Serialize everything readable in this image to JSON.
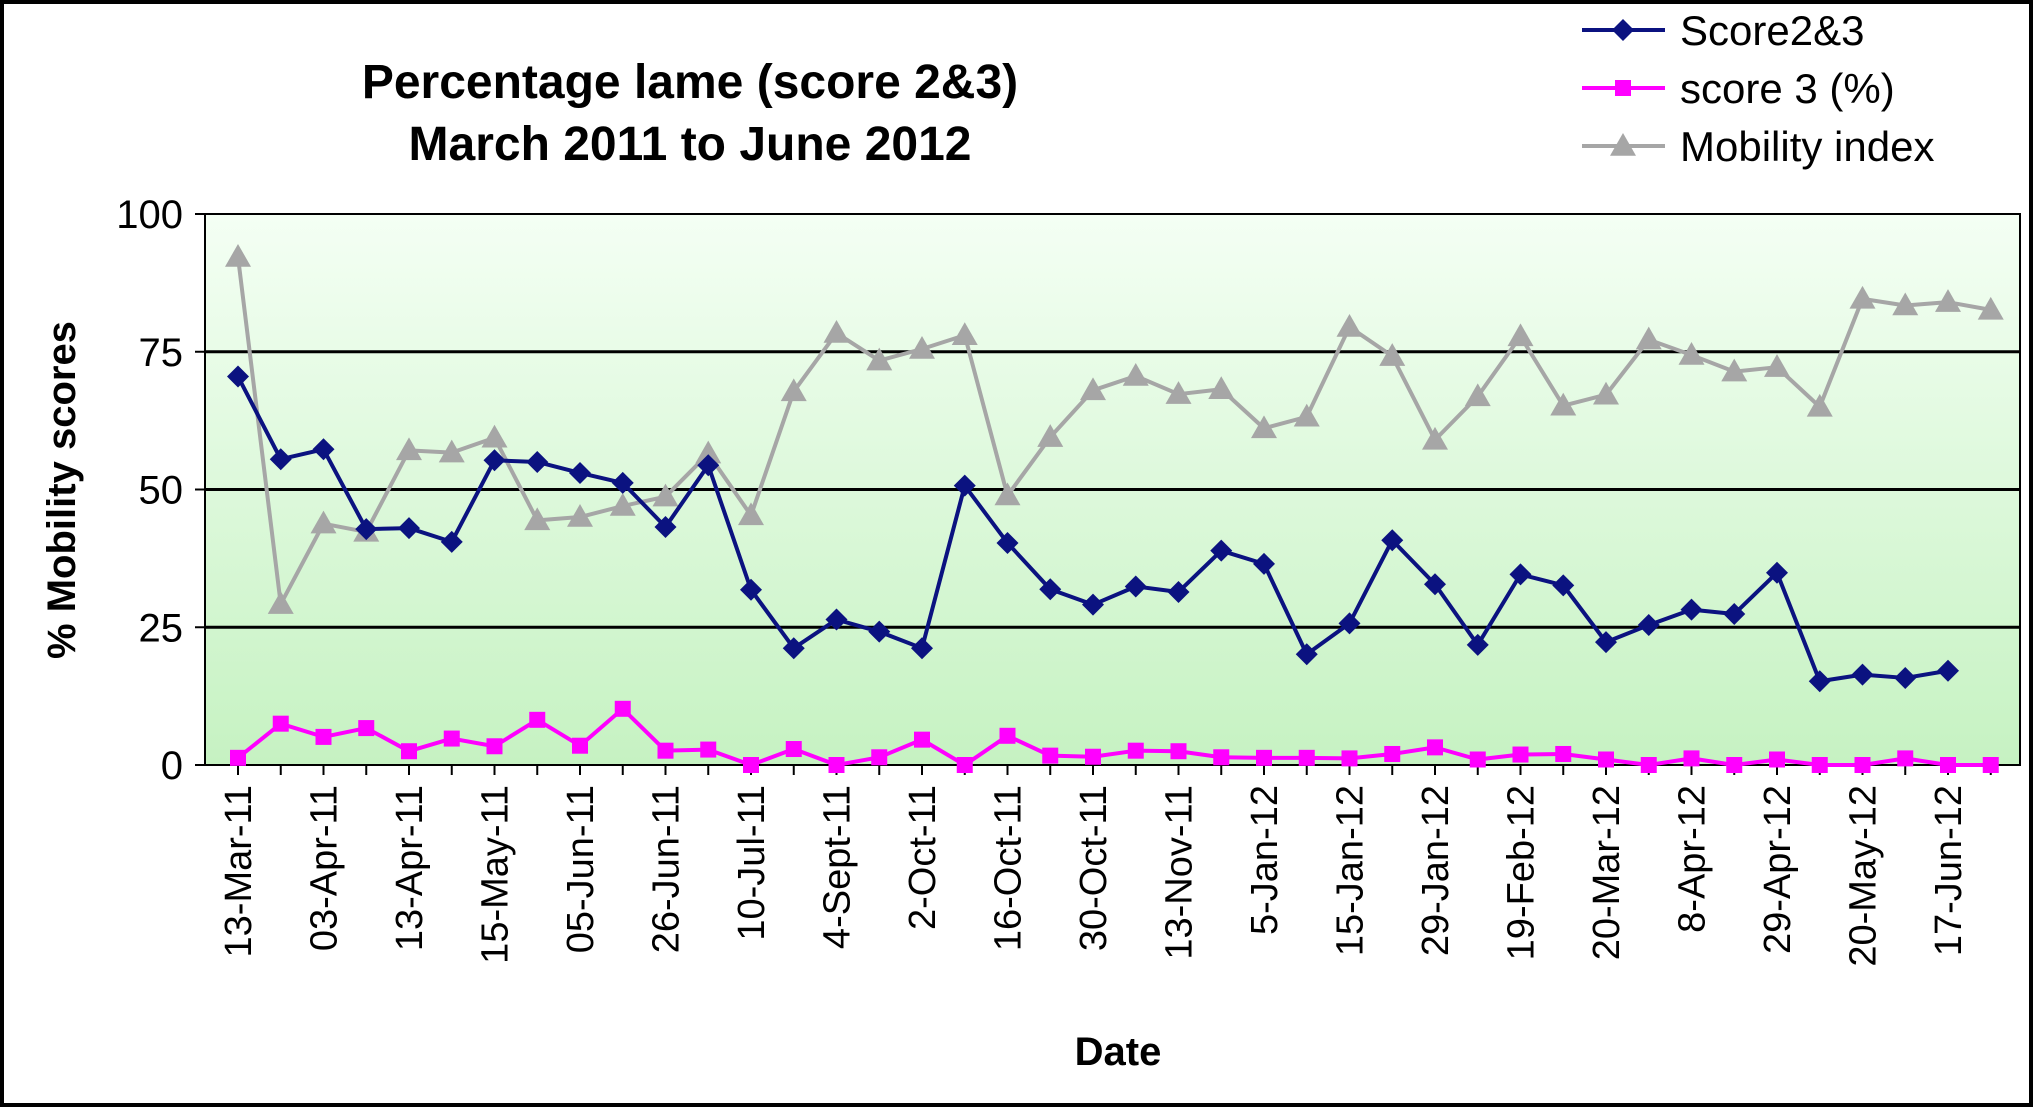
{
  "chart_data": {
    "type": "line",
    "title": [
      "Percentage lame (score 2&3)",
      "March 2011 to June 2012"
    ],
    "xlabel": "Date",
    "ylabel": "% Mobility scores",
    "ylim": [
      0,
      100
    ],
    "yticks": [
      0,
      25,
      50,
      75,
      100
    ],
    "grid": "horizontal major lines",
    "legend_position": "top-right",
    "background": "gradient light green",
    "xtick_labels": [
      "13-Mar-11",
      "03-Apr-11",
      "13-Apr-11",
      "15-May-11",
      "05-Jun-11",
      "26-Jun-11",
      "10-Jul-11",
      "4-Sept-11",
      "2-Oct-11",
      "16-Oct-11",
      "30-Oct-11",
      "13-Nov-11",
      "5-Jan-12",
      "15-Jan-12",
      "29-Jan-12",
      "19-Feb-12",
      "20-Mar-12",
      "8-Apr-12",
      "29-Apr-12",
      "20-May-12",
      "17-Jun-12"
    ],
    "n_points": 42,
    "series": [
      {
        "name": "Score2&3",
        "color": "#0b1280",
        "marker": "diamond",
        "values": [
          70.5,
          55.5,
          57.3,
          42.8,
          43,
          40.5,
          55.3,
          55,
          53,
          51.2,
          43.2,
          54.4,
          31.8,
          21.2,
          26.4,
          24.2,
          21.2,
          50.7,
          40.3,
          31.9,
          29.1,
          32.4,
          31.4,
          38.9,
          36.5,
          20.1,
          25.7,
          40.8,
          32.8,
          21.8,
          34.6,
          32.6,
          22.3,
          25.4,
          28.2,
          27.4,
          34.9,
          15.2,
          16.4,
          15.8,
          17.1,
          null
        ]
      },
      {
        "name": "score 3 (%)",
        "color": "#ff00ff",
        "marker": "square",
        "values": [
          1.3,
          7.5,
          5.1,
          6.7,
          2.5,
          4.8,
          3.4,
          8.2,
          3.5,
          10.2,
          2.6,
          2.8,
          0,
          2.9,
          0,
          1.4,
          4.6,
          0,
          5.3,
          1.7,
          1.5,
          2.6,
          2.5,
          1.4,
          1.3,
          1.3,
          1.2,
          2,
          3.2,
          1,
          1.9,
          2,
          1,
          0,
          1.2,
          0,
          1,
          0,
          0,
          1.2,
          0,
          0
        ]
      },
      {
        "name": "Mobility index",
        "color": "#a6a6a6",
        "marker": "triangle",
        "values": [
          92.2,
          29.2,
          43.8,
          42.3,
          57.1,
          56.7,
          59.4,
          44.4,
          45,
          47,
          48.7,
          56.5,
          45.3,
          67.8,
          78.4,
          73.4,
          75.5,
          78,
          48.9,
          59.5,
          68,
          70.6,
          67.3,
          68.2,
          61.1,
          63.2,
          79.5,
          74.2,
          59,
          66.9,
          77.8,
          65.2,
          67.2,
          77.2,
          74.4,
          71.4,
          72.2,
          65,
          84.6,
          83.4,
          84,
          82.6
        ]
      }
    ]
  }
}
